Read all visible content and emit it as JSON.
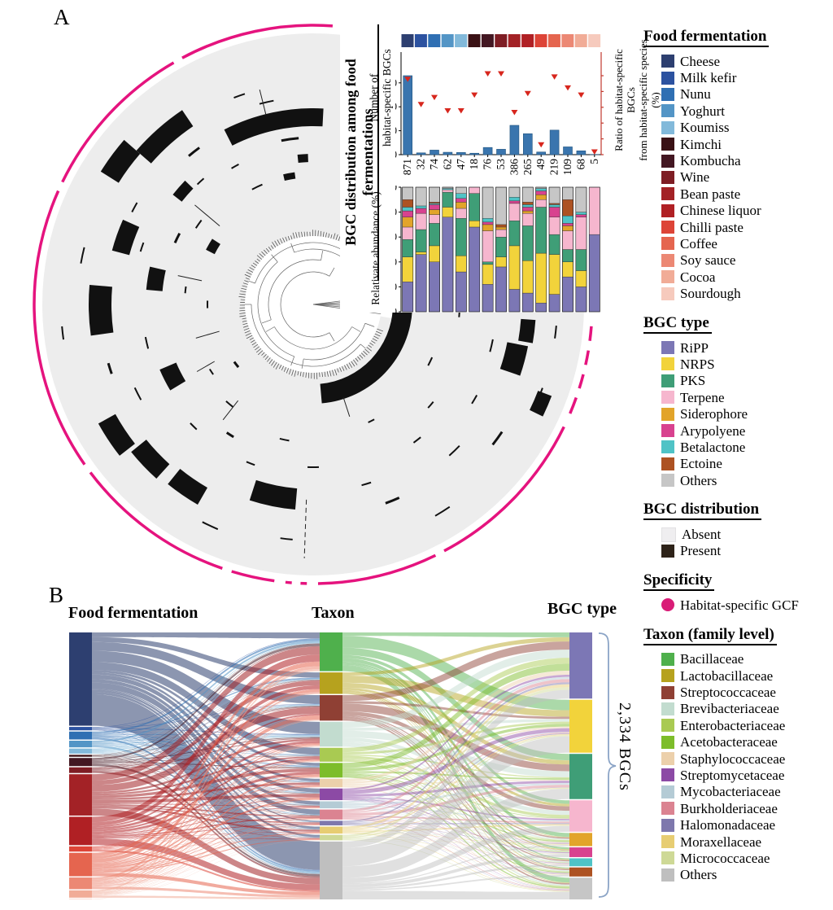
{
  "panelA": {
    "label": "A",
    "inset_title": "BGC distribution among food fermentations",
    "bar_chart": {
      "ylabel": "Number of\nhabitat-specific BGCs",
      "y2label": "Ratio of habitat-specific BGCs\nfrom habitat-specific species (%)",
      "yticks": [
        0,
        200,
        400,
        600
      ],
      "y2ticks": [
        0,
        20,
        40,
        60,
        80,
        100
      ]
    },
    "stacked_chart": {
      "ylabel": "Relativate abundance  (%)",
      "yticks": [
        0,
        20,
        40,
        60,
        80,
        100
      ]
    },
    "tree": {
      "disc_color": "#ededed",
      "present_color": "#111111",
      "ring_color": "#e5137e",
      "ring_segments": [
        [
          86,
          118
        ],
        [
          120,
          154
        ],
        [
          156,
          215
        ],
        [
          217,
          251
        ],
        [
          253,
          262
        ],
        [
          264.3,
          265.6
        ],
        [
          267.4,
          268.7
        ],
        [
          271,
          296
        ],
        [
          298,
          334
        ],
        [
          337,
          340.5
        ],
        [
          342.5,
          345.5
        ],
        [
          347.5,
          350.5
        ],
        [
          352.5,
          355.5
        ]
      ],
      "marks": [
        [
          87,
          30,
          230,
          22
        ],
        [
          124,
          15,
          276,
          24
        ],
        [
          139,
          9,
          295,
          26
        ],
        [
          156,
          9,
          245,
          22
        ],
        [
          136,
          6,
          212,
          14
        ],
        [
          175,
          13,
          262,
          28
        ],
        [
          167,
          8,
          196,
          20
        ],
        [
          147,
          6,
          142,
          12
        ],
        [
          209,
          9,
          290,
          24
        ],
        [
          219,
          9,
          276,
          24
        ],
        [
          231,
          9,
          272,
          24
        ],
        [
          203,
          8,
          194,
          22
        ],
        [
          252,
          13,
          240,
          26
        ],
        [
          341,
          8,
          256,
          26
        ],
        [
          334,
          5,
          305,
          18
        ],
        [
          350,
          6,
          265,
          18
        ],
        [
          275,
          83,
          110,
          24
        ],
        [
          95,
          6,
          205,
          3
        ],
        [
          101,
          4,
          255,
          2
        ],
        [
          108,
          3,
          272,
          2
        ],
        [
          113,
          5,
          160,
          2
        ],
        [
          118,
          3,
          195,
          2
        ],
        [
          126,
          4,
          238,
          3
        ],
        [
          131,
          3,
          205,
          2
        ],
        [
          143,
          4,
          172,
          2
        ],
        [
          150,
          3,
          250,
          2
        ],
        [
          152,
          4,
          186,
          3
        ],
        [
          160,
          3,
          222,
          2
        ],
        [
          166,
          4,
          290,
          2
        ],
        [
          172,
          3,
          158,
          2
        ],
        [
          178,
          4,
          130,
          2
        ],
        [
          185,
          3,
          310,
          2
        ],
        [
          191,
          4,
          210,
          2
        ],
        [
          196,
          3,
          262,
          3
        ],
        [
          205,
          4,
          242,
          2
        ],
        [
          212,
          3,
          150,
          2
        ],
        [
          216,
          4,
          120,
          3
        ],
        [
          224,
          3,
          210,
          2
        ],
        [
          228,
          4,
          160,
          2
        ],
        [
          236,
          3,
          190,
          3
        ],
        [
          243,
          4,
          300,
          2
        ],
        [
          247,
          3,
          210,
          2
        ],
        [
          256,
          4,
          170,
          2
        ],
        [
          262,
          3,
          290,
          2
        ],
        [
          268,
          4,
          200,
          2
        ],
        [
          285,
          3,
          230,
          2
        ],
        [
          290,
          4,
          260,
          3
        ],
        [
          295,
          3,
          160,
          2
        ],
        [
          300,
          4,
          300,
          2
        ],
        [
          306,
          3,
          210,
          2
        ],
        [
          312,
          4,
          250,
          2
        ],
        [
          318,
          3,
          190,
          2
        ],
        [
          322,
          4,
          280,
          3
        ],
        [
          328,
          3,
          230,
          2
        ],
        [
          332,
          4,
          160,
          2
        ],
        [
          337,
          3,
          300,
          2
        ],
        [
          345,
          4,
          225,
          2
        ],
        [
          352,
          3,
          300,
          2
        ],
        [
          355,
          4,
          180,
          2
        ],
        [
          356,
          3,
          120,
          8
        ],
        [
          2,
          3,
          140,
          6
        ],
        [
          8,
          2,
          160,
          5
        ],
        [
          92,
          4,
          180,
          10
        ],
        [
          98,
          5,
          160,
          8
        ]
      ],
      "spokes": [
        [
          104,
          240,
          272
        ],
        [
          140,
          150,
          190
        ],
        [
          168,
          140,
          170
        ],
        [
          268,
          240,
          312
        ],
        [
          232,
          150,
          180
        ],
        [
          210,
          140,
          165
        ],
        [
          196,
          120,
          150
        ],
        [
          288,
          120,
          145
        ]
      ]
    }
  },
  "palettes": {
    "food": [
      "#2d3f70",
      "#2c52a0",
      "#2f6fb3",
      "#5395c6",
      "#82b9da",
      "#3a1115",
      "#431722",
      "#7e1d24",
      "#a32226",
      "#b02024",
      "#dd4437",
      "#e5654f",
      "#ec8874",
      "#f1ac97",
      "#f6cabd"
    ],
    "bgc": [
      "#7c77b5",
      "#f2d33b",
      "#3f9e77",
      "#f6b6ce",
      "#e2a42a",
      "#d8428f",
      "#4fc3c6",
      "#ad5222",
      "#c6c6c6"
    ],
    "taxon": [
      "#4fb04c",
      "#b6a21e",
      "#8f4034",
      "#c2dccf",
      "#a9ca52",
      "#7dbd2a",
      "#ecd0ab",
      "#8c4aa5",
      "#b4cbd5",
      "#db8391",
      "#7e78ad",
      "#e7cd72",
      "#ced996",
      "#bfbfbf"
    ]
  },
  "legend": {
    "food_fermentation": {
      "title": "Food fermentation",
      "items": [
        "Cheese",
        "Milk kefir",
        "Nunu",
        "Yoghurt",
        "Koumiss",
        "Kimchi",
        "Kombucha",
        "Wine",
        "Bean paste",
        "Chinese liquor",
        "Chilli paste",
        "Coffee",
        "Soy sauce",
        "Cocoa",
        "Sourdough"
      ]
    },
    "bgc_type": {
      "title": "BGC type",
      "items": [
        "RiPP",
        "NRPS",
        "PKS",
        "Terpene",
        "Siderophore",
        "Arypolyene",
        "Betalactone",
        "Ectoine",
        "Others"
      ]
    },
    "bgc_distribution": {
      "title": "BGC distribution",
      "items": [
        "Absent",
        "Present"
      ],
      "colors": [
        "#efeef0",
        "#2e2319"
      ]
    },
    "specificity": {
      "title": "Specificity",
      "items": [
        "Habitat-specific GCF"
      ],
      "colors": [
        "#d91c77"
      ]
    },
    "taxon": {
      "title": "Taxon (family level)",
      "items": [
        "Bacillaceae",
        "Lactobacillaceae",
        "Streptococcaceae",
        "Brevibacteriaceae",
        "Enterobacteriaceae",
        "Acetobacteraceae",
        "Staphylococcaceae",
        "Streptomycetaceae",
        "Mycobacteriaceae",
        "Burkholderiaceae",
        "Halomonadaceae",
        "Moraxellaceae",
        "Micrococcaceae",
        "Others"
      ]
    }
  },
  "panelB": {
    "label": "B",
    "headers": [
      "Food fermentation",
      "Taxon",
      "BGC type"
    ],
    "total_label": "2,334 BGCs",
    "brace_color": "#8ba4c6"
  },
  "chart_data": [
    {
      "type": "bar",
      "title": "habitat-specific BGC counts per food fermentation",
      "categories": [
        "871",
        "32",
        "74",
        "62",
        "47",
        "18",
        "76",
        "53",
        "386",
        "265",
        "49",
        "219",
        "109",
        "68",
        "5"
      ],
      "series": [
        {
          "name": "Number of habitat-specific BGCs",
          "type": "bar",
          "color": "#3a75ae",
          "values": [
            660,
            15,
            38,
            20,
            18,
            12,
            60,
            45,
            245,
            175,
            22,
            205,
            65,
            32,
            2
          ]
        },
        {
          "name": "Ratio of habitat-specific BGCs from habitat-specific species (%)",
          "type": "scatter-triangle",
          "color": "#d7261d",
          "values": [
            92,
            60,
            69,
            52,
            52,
            72,
            99,
            99,
            50,
            74,
            9,
            95,
            81,
            72,
            0
          ]
        }
      ],
      "ylabel": "Number of habitat-specific BGCs",
      "y2label": "Ratio of habitat-specific BGCs from habitat-specific species (%)",
      "ylim": [
        0,
        700
      ],
      "y2lim": [
        0,
        100
      ],
      "yticks": [
        0,
        200,
        400,
        600
      ],
      "y2ticks": [
        0,
        20,
        40,
        60,
        80,
        100
      ],
      "strip_categories": [
        "Cheese",
        "Milk kefir",
        "Nunu",
        "Yoghurt",
        "Koumiss",
        "Kimchi",
        "Kombucha",
        "Wine",
        "Bean paste",
        "Chinese liquor",
        "Chilli paste",
        "Coffee",
        "Soy sauce",
        "Cocoa",
        "Sourdough"
      ]
    },
    {
      "type": "stacked-bar-100",
      "title": "Relativate abundance (%) of BGC types per food fermentation",
      "categories": [
        "871",
        "32",
        "74",
        "62",
        "47",
        "18",
        "76",
        "53",
        "386",
        "265",
        "49",
        "219",
        "109",
        "68",
        "5"
      ],
      "ylabel": "Relativate abundance (%)",
      "ylim": [
        0,
        100
      ],
      "yticks": [
        0,
        20,
        40,
        60,
        80,
        100
      ],
      "series": [
        {
          "name": "RiPP",
          "values": [
            24,
            46,
            40,
            76,
            32,
            68,
            22,
            36,
            18,
            15,
            7,
            14,
            28,
            20,
            62
          ]
        },
        {
          "name": "NRPS",
          "values": [
            20,
            2,
            13,
            8,
            13,
            5,
            16,
            8,
            35,
            26,
            40,
            32,
            12,
            13,
            0
          ]
        },
        {
          "name": "PKS",
          "values": [
            14,
            18,
            18,
            12,
            30,
            22,
            2,
            16,
            20,
            28,
            37,
            16,
            10,
            17,
            0
          ]
        },
        {
          "name": "Terpene",
          "values": [
            10,
            13,
            7,
            2,
            8,
            5,
            25,
            6,
            14,
            10,
            6,
            14,
            15,
            26,
            38
          ]
        },
        {
          "name": "Siderophore",
          "values": [
            8,
            0,
            4,
            0,
            5,
            0,
            5,
            2,
            0,
            2,
            4,
            0,
            4,
            0,
            0
          ]
        },
        {
          "name": "Arypolyene",
          "values": [
            5,
            4,
            4,
            0,
            3,
            0,
            2,
            0,
            2,
            3,
            3,
            8,
            2,
            2,
            0
          ]
        },
        {
          "name": "Betalactone",
          "values": [
            3,
            2,
            1,
            1,
            4,
            0,
            3,
            0,
            3,
            2,
            2,
            2,
            6,
            2,
            0
          ]
        },
        {
          "name": "Ectoine",
          "values": [
            6,
            0,
            1,
            0,
            0,
            0,
            0,
            2,
            0,
            2,
            0,
            1,
            13,
            0,
            0
          ]
        },
        {
          "name": "Others",
          "values": [
            10,
            15,
            12,
            1,
            5,
            0,
            25,
            30,
            8,
            12,
            1,
            13,
            10,
            20,
            0
          ]
        }
      ]
    },
    {
      "type": "sankey",
      "title": "Food fermentation to Taxon to BGC type",
      "total": 2334,
      "total_label": "2,334 BGCs",
      "columns": [
        "Food fermentation",
        "Taxon",
        "BGC type"
      ],
      "food_nodes": {
        "labels": [
          "Cheese",
          "Milk kefir",
          "Nunu",
          "Yoghurt",
          "Koumiss",
          "Kimchi",
          "Kombucha",
          "Wine",
          "Bean paste",
          "Chinese liquor",
          "Chilli paste",
          "Coffee",
          "Soy sauce",
          "Cocoa",
          "Sourdough"
        ],
        "values": [
          871,
          32,
          74,
          62,
          47,
          18,
          76,
          53,
          386,
          265,
          49,
          219,
          109,
          68,
          5
        ]
      },
      "taxon_nodes": {
        "labels": [
          "Bacillaceae",
          "Lactobacillaceae",
          "Streptococcaceae",
          "Brevibacteriaceae",
          "Enterobacteriaceae",
          "Acetobacteraceae",
          "Staphylococcaceae",
          "Streptomycetaceae",
          "Mycobacteriaceae",
          "Burkholderiaceae",
          "Halomonadaceae",
          "Moraxellaceae",
          "Micrococcaceae",
          "Others"
        ],
        "values": [
          360,
          200,
          237,
          230,
          129,
          136,
          79,
          108,
          65,
          93,
          43,
          65,
          51,
          538
        ]
      },
      "bgc_nodes": {
        "labels": [
          "RiPP",
          "NRPS",
          "PKS",
          "Terpene",
          "Siderophore",
          "Arypolyene",
          "Betalactone",
          "Ectoine",
          "Others"
        ],
        "values": [
          600,
          480,
          410,
          285,
          120,
          88,
          72,
          82,
          197
        ]
      }
    }
  ]
}
